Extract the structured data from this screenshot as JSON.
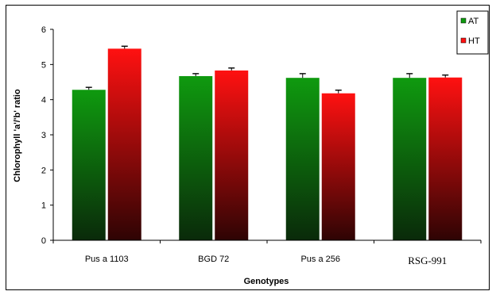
{
  "chart_data": {
    "type": "bar",
    "title": "",
    "xlabel": "Genotypes",
    "ylabel": "Chlorophyll 'a'/'b' ratio",
    "categories": [
      "Pus a 1103",
      "BGD 72",
      "Pus a 256",
      "RSG-991"
    ],
    "series": [
      {
        "name": "AT",
        "values": [
          4.28,
          4.67,
          4.62,
          4.62
        ],
        "errors": [
          0.07,
          0.07,
          0.12,
          0.12
        ],
        "gradient": [
          "#0f9a0f",
          "#0a2a0a"
        ]
      },
      {
        "name": "HT",
        "values": [
          5.45,
          4.83,
          4.18,
          4.63
        ],
        "errors": [
          0.07,
          0.07,
          0.09,
          0.07
        ],
        "gradient": [
          "#ff1111",
          "#2e0404"
        ]
      }
    ],
    "ylim": [
      0,
      6
    ],
    "yticks": [
      0,
      1,
      2,
      3,
      4,
      5,
      6
    ],
    "grid": false,
    "legend_position": "top-right"
  }
}
